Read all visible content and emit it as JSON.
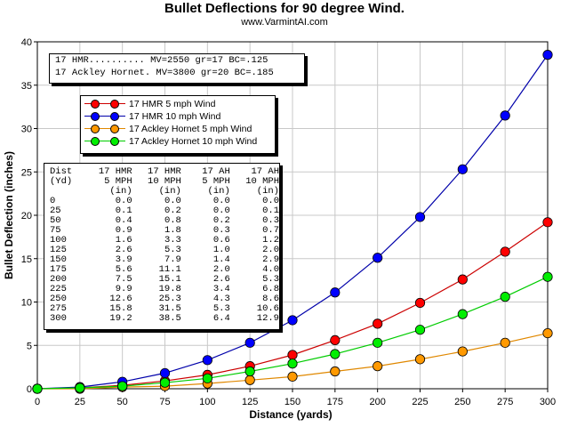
{
  "chart_data": {
    "type": "line",
    "title": "Bullet Deflections for 90 degree Wind.",
    "subtitle": "www.VarmintAI.com",
    "xlabel": "Distance (yards)",
    "ylabel": "Bullet Deflection (inches)",
    "xlim": [
      0,
      300
    ],
    "ylim": [
      0,
      40
    ],
    "x_ticks": [
      "0",
      "25",
      "50",
      "75",
      "100",
      "125",
      "150",
      "175",
      "200",
      "225",
      "250",
      "275",
      "300"
    ],
    "y_ticks": [
      "0",
      "5",
      "10",
      "15",
      "20",
      "25",
      "30",
      "35",
      "40"
    ],
    "grid": true,
    "legend_position": "upper-left",
    "x": [
      0,
      25,
      50,
      75,
      100,
      125,
      150,
      175,
      200,
      225,
      250,
      275,
      300
    ],
    "series": [
      {
        "name": "17 HMR 5 mph Wind",
        "color": "#ff0000",
        "line_color": "#cc0000",
        "values": [
          0.0,
          0.1,
          0.4,
          0.9,
          1.6,
          2.6,
          3.9,
          5.6,
          7.5,
          9.9,
          12.6,
          15.8,
          19.2
        ]
      },
      {
        "name": "17 HMR 10 mph Wind",
        "color": "#0000ff",
        "line_color": "#0000aa",
        "values": [
          0.0,
          0.2,
          0.8,
          1.8,
          3.3,
          5.3,
          7.9,
          11.1,
          15.1,
          19.8,
          25.3,
          31.5,
          38.5
        ]
      },
      {
        "name": "17 Ackley Hornet 5 mph Wind",
        "color": "#ff9900",
        "line_color": "#e08800",
        "values": [
          0.0,
          0.0,
          0.2,
          0.3,
          0.6,
          1.0,
          1.4,
          2.0,
          2.6,
          3.4,
          4.3,
          5.3,
          6.4
        ]
      },
      {
        "name": "17 Ackley Hornet 10 mph Wind",
        "color": "#00ee00",
        "line_color": "#00cc00",
        "values": [
          0.0,
          0.1,
          0.3,
          0.7,
          1.2,
          2.0,
          2.9,
          4.0,
          5.3,
          6.8,
          8.6,
          10.6,
          12.9
        ]
      }
    ],
    "info_lines": [
      "17 HMR.......... MV=2550 gr=17 BC=.125",
      "17 Ackley Hornet. MV=3800 gr=20 BC=.185"
    ],
    "table": {
      "header_rows": [
        [
          "Dist",
          "17 HMR",
          "17 HMR",
          "17 AH",
          "17 AH"
        ],
        [
          "(Yd)",
          "5 MPH",
          "10 MPH",
          "5 MPH",
          "10 MPH"
        ],
        [
          "",
          "(in)",
          "(in)",
          "(in)",
          "(in)"
        ]
      ],
      "rows": [
        [
          "0",
          "0.0",
          "0.0",
          "0.0",
          "0.0"
        ],
        [
          "25",
          "0.1",
          "0.2",
          "0.0",
          "0.1"
        ],
        [
          "50",
          "0.4",
          "0.8",
          "0.2",
          "0.3"
        ],
        [
          "75",
          "0.9",
          "1.8",
          "0.3",
          "0.7"
        ],
        [
          "100",
          "1.6",
          "3.3",
          "0.6",
          "1.2"
        ],
        [
          "125",
          "2.6",
          "5.3",
          "1.0",
          "2.0"
        ],
        [
          "150",
          "3.9",
          "7.9",
          "1.4",
          "2.9"
        ],
        [
          "175",
          "5.6",
          "11.1",
          "2.0",
          "4.0"
        ],
        [
          "200",
          "7.5",
          "15.1",
          "2.6",
          "5.3"
        ],
        [
          "225",
          "9.9",
          "19.8",
          "3.4",
          "6.8"
        ],
        [
          "250",
          "12.6",
          "25.3",
          "4.3",
          "8.6"
        ],
        [
          "275",
          "15.8",
          "31.5",
          "5.3",
          "10.6"
        ],
        [
          "300",
          "19.2",
          "38.5",
          "6.4",
          "12.9"
        ]
      ]
    }
  }
}
